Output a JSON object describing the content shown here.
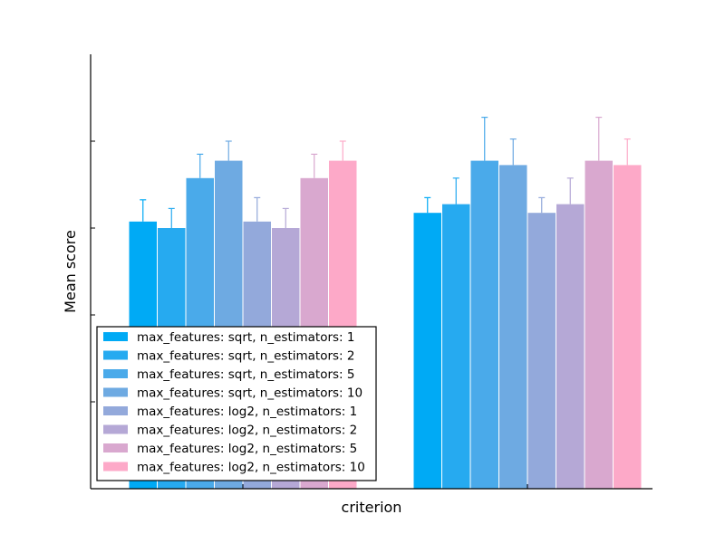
{
  "chart_data": {
    "type": "bar",
    "title": "",
    "xlabel": "criterion",
    "ylabel": "Mean score",
    "categories": [
      "",
      ""
    ],
    "ylim": [
      0,
      1.0
    ],
    "grid": false,
    "legend_position": "bottom-left",
    "series": [
      {
        "name": "max_features: sqrt, n_estimators: 1",
        "color": "#00aaf5",
        "values": [
          0.615,
          0.635
        ],
        "errors": [
          0.05,
          0.035
        ]
      },
      {
        "name": "max_features: sqrt, n_estimators: 2",
        "color": "#26aaf0",
        "values": [
          0.6,
          0.655
        ],
        "errors": [
          0.045,
          0.06
        ]
      },
      {
        "name": "max_features: sqrt, n_estimators: 5",
        "color": "#4aaaea",
        "values": [
          0.715,
          0.755
        ],
        "errors": [
          0.055,
          0.1
        ]
      },
      {
        "name": "max_features: sqrt, n_estimators: 10",
        "color": "#6eaae2",
        "values": [
          0.755,
          0.745
        ],
        "errors": [
          0.045,
          0.06
        ]
      },
      {
        "name": "max_features: log2, n_estimators: 1",
        "color": "#93a9db",
        "values": [
          0.615,
          0.635
        ],
        "errors": [
          0.055,
          0.035
        ]
      },
      {
        "name": "max_features: log2, n_estimators: 2",
        "color": "#b5a8d6",
        "values": [
          0.6,
          0.655
        ],
        "errors": [
          0.045,
          0.06
        ]
      },
      {
        "name": "max_features: log2, n_estimators: 5",
        "color": "#d9a8cf",
        "values": [
          0.715,
          0.755
        ],
        "errors": [
          0.055,
          0.1
        ]
      },
      {
        "name": "max_features: log2, n_estimators: 10",
        "color": "#fda9c8",
        "values": [
          0.755,
          0.745
        ],
        "errors": [
          0.045,
          0.06
        ]
      }
    ]
  }
}
